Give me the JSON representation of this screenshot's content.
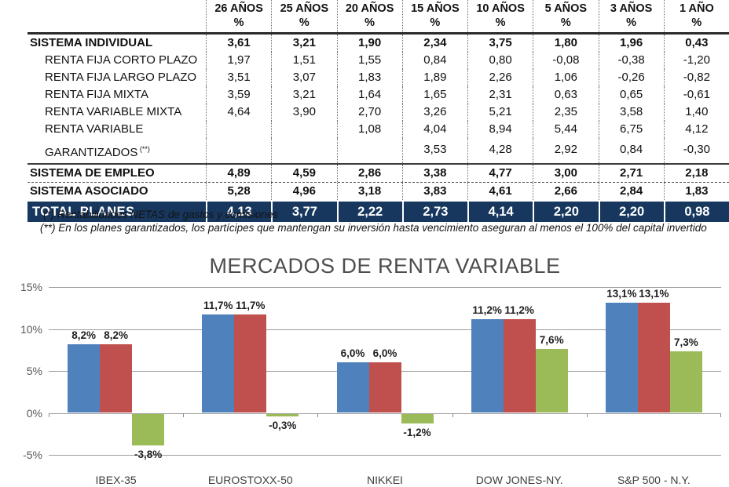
{
  "table": {
    "headers": [
      {
        "line1": "26 AÑOS",
        "line2": "%"
      },
      {
        "line1": "25 AÑOS",
        "line2": "%"
      },
      {
        "line1": "20 AÑOS",
        "line2": "%"
      },
      {
        "line1": "15 AÑOS",
        "line2": "%"
      },
      {
        "line1": "10 AÑOS",
        "line2": "%"
      },
      {
        "line1": "5 AÑOS",
        "line2": "%"
      },
      {
        "line1": "3 AÑOS",
        "line2": "%"
      },
      {
        "line1": "1 AÑO",
        "line2": "%"
      }
    ],
    "rows": [
      {
        "label": "SISTEMA INDIVIDUAL",
        "sup": "",
        "bold": true,
        "indent": false,
        "divider": "none",
        "total": false,
        "values": [
          "3,61",
          "3,21",
          "1,90",
          "2,34",
          "3,75",
          "1,80",
          "1,96",
          "0,43"
        ]
      },
      {
        "label": "RENTA FIJA CORTO PLAZO",
        "sup": "",
        "bold": false,
        "indent": true,
        "divider": "none",
        "total": false,
        "values": [
          "1,97",
          "1,51",
          "1,55",
          "0,84",
          "0,80",
          "-0,08",
          "-0,38",
          "-1,20"
        ]
      },
      {
        "label": "RENTA FIJA LARGO PLAZO",
        "sup": "",
        "bold": false,
        "indent": true,
        "divider": "none",
        "total": false,
        "values": [
          "3,51",
          "3,07",
          "1,83",
          "1,89",
          "2,26",
          "1,06",
          "-0,26",
          "-0,82"
        ]
      },
      {
        "label": "RENTA FIJA MIXTA",
        "sup": "",
        "bold": false,
        "indent": true,
        "divider": "none",
        "total": false,
        "values": [
          "3,59",
          "3,21",
          "1,64",
          "1,65",
          "2,31",
          "0,63",
          "0,65",
          "-0,61"
        ]
      },
      {
        "label": "RENTA VARIABLE MIXTA",
        "sup": "",
        "bold": false,
        "indent": true,
        "divider": "none",
        "total": false,
        "values": [
          "4,64",
          "3,90",
          "2,70",
          "3,26",
          "5,21",
          "2,35",
          "3,58",
          "1,40"
        ]
      },
      {
        "label": "RENTA VARIABLE",
        "sup": "",
        "bold": false,
        "indent": true,
        "divider": "none",
        "total": false,
        "values": [
          "",
          "",
          "1,08",
          "4,04",
          "8,94",
          "5,44",
          "6,75",
          "4,12"
        ]
      },
      {
        "label": "GARANTIZADOS",
        "sup": "(**)",
        "bold": false,
        "indent": true,
        "divider": "none",
        "total": false,
        "tall": true,
        "values": [
          "",
          "",
          "",
          "3,53",
          "4,28",
          "2,92",
          "0,84",
          "-0,30"
        ]
      },
      {
        "label": "SISTEMA DE EMPLEO",
        "sup": "",
        "bold": true,
        "indent": false,
        "divider": "solid",
        "total": false,
        "values": [
          "4,89",
          "4,59",
          "2,86",
          "3,38",
          "4,77",
          "3,00",
          "2,71",
          "2,18"
        ]
      },
      {
        "label": "SISTEMA ASOCIADO",
        "sup": "",
        "bold": true,
        "indent": false,
        "divider": "dashed",
        "total": false,
        "values": [
          "5,28",
          "4,96",
          "3,18",
          "3,83",
          "4,61",
          "2,66",
          "2,84",
          "1,83"
        ]
      },
      {
        "label": "TOTAL PLANES",
        "sup": "",
        "bold": true,
        "indent": false,
        "divider": "none",
        "total": true,
        "values": [
          "4,13",
          "3,77",
          "2,22",
          "2,73",
          "4,14",
          "2,20",
          "2,20",
          "0,98"
        ]
      }
    ],
    "total_row_bg": "#17375E",
    "footnotes": [
      "(*) Rentabilidades NETAS de gastos y comisiones",
      "(**) En los planes garantizados, los partícipes que mantengan su inversión hasta vencimiento aseguran al menos el 100% del capital invertido"
    ]
  },
  "chart_data": {
    "type": "bar",
    "title": "MERCADOS DE RENTA VARIABLE",
    "categories": [
      "IBEX-35",
      "EUROSTOXX-50",
      "NIKKEI",
      "DOW JONES-NY.",
      "S&P 500 - N.Y."
    ],
    "series": [
      {
        "name": "serie-azul",
        "color": "#4F81BD",
        "values": [
          8.2,
          11.7,
          6.0,
          11.2,
          13.1
        ],
        "labels": [
          "8,2%",
          "11,7%",
          "6,0%",
          "11,2%",
          "13,1%"
        ]
      },
      {
        "name": "serie-roja",
        "color": "#C0504D",
        "values": [
          8.2,
          11.7,
          6.0,
          11.2,
          13.1
        ],
        "labels": [
          "8,2%",
          "11,7%",
          "6,0%",
          "11,2%",
          "13,1%"
        ]
      },
      {
        "name": "serie-verde",
        "color": "#9BBB59",
        "values": [
          -3.8,
          -0.3,
          -1.2,
          7.6,
          7.3
        ],
        "labels": [
          "-3,8%",
          "-0,3%",
          "-1,2%",
          "7,6%",
          "7,3%"
        ]
      }
    ],
    "y_ticks": [
      "15%",
      "10%",
      "5%",
      "0%",
      "-5%"
    ],
    "y_tick_values": [
      15,
      10,
      5,
      0,
      -5
    ],
    "ylim": [
      -5,
      15
    ],
    "xlabel": "",
    "ylabel": "",
    "grid": true,
    "legend": "none",
    "gridline_color": "#9d9d9d"
  }
}
